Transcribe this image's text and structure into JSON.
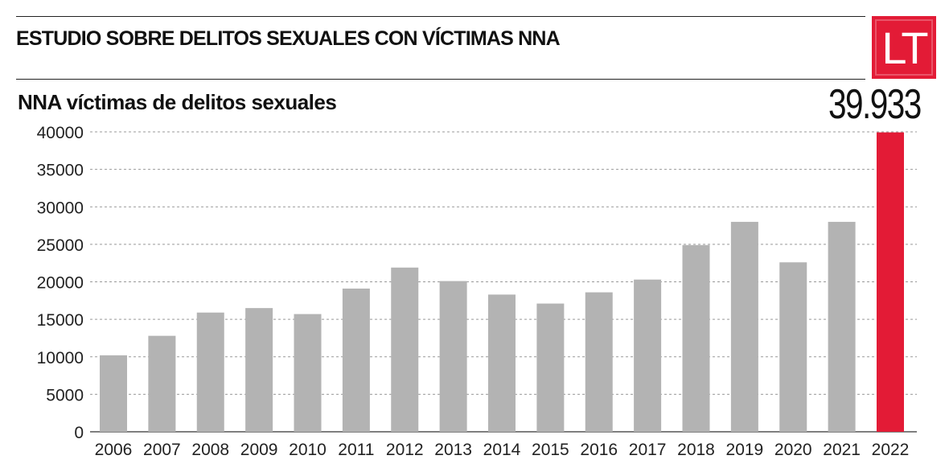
{
  "header": {
    "title": "ESTUDIO SOBRE DELITOS SEXUALES CON VÍCTIMAS NNA",
    "logo_text": "LT"
  },
  "highlight": {
    "value_label": "39.933"
  },
  "colors": {
    "bar": "#b3b3b3",
    "highlight_bar": "#e31b36",
    "grid": "#999999",
    "text": "#222222"
  },
  "chart_data": {
    "type": "bar",
    "title": "NNA víctimas de delitos sexuales",
    "xlabel": "",
    "ylabel": "",
    "categories": [
      "2006",
      "2007",
      "2008",
      "2009",
      "2010",
      "2011",
      "2012",
      "2013",
      "2014",
      "2015",
      "2016",
      "2017",
      "2018",
      "2019",
      "2020",
      "2021",
      "2022"
    ],
    "values": [
      10200,
      12800,
      15900,
      16500,
      15700,
      19100,
      21900,
      20100,
      18300,
      17100,
      18600,
      20300,
      24900,
      28000,
      22600,
      28000,
      39933
    ],
    "highlight_index": 16,
    "ylim": [
      0,
      40000
    ],
    "yticks": [
      0,
      5000,
      10000,
      15000,
      20000,
      25000,
      30000,
      35000,
      40000
    ],
    "grid": true,
    "legend": "none"
  }
}
